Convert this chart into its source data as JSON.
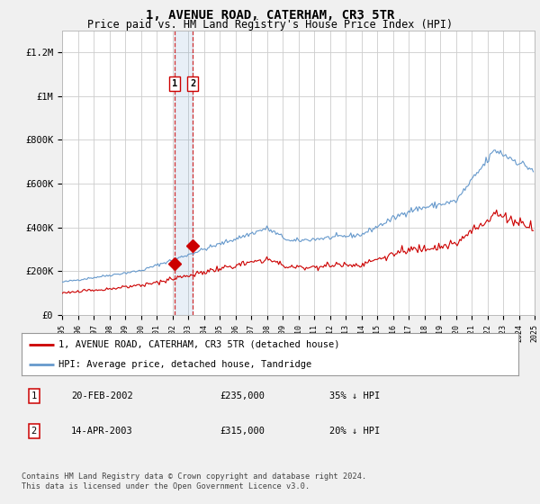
{
  "title": "1, AVENUE ROAD, CATERHAM, CR3 5TR",
  "subtitle": "Price paid vs. HM Land Registry's House Price Index (HPI)",
  "legend_line1": "1, AVENUE ROAD, CATERHAM, CR3 5TR (detached house)",
  "legend_line2": "HPI: Average price, detached house, Tandridge",
  "footer": "Contains HM Land Registry data © Crown copyright and database right 2024.\nThis data is licensed under the Open Government Licence v3.0.",
  "transactions": [
    {
      "num": 1,
      "date": "20-FEB-2002",
      "price": "£235,000",
      "hpi": "35% ↓ HPI",
      "year": 2002.13
    },
    {
      "num": 2,
      "date": "14-APR-2003",
      "price": "£315,000",
      "hpi": "20% ↓ HPI",
      "year": 2003.29
    }
  ],
  "hpi_color": "#6699cc",
  "price_paid_color": "#cc0000",
  "xlim": [
    1995,
    2025
  ],
  "ylim": [
    0,
    1300000
  ],
  "yticks": [
    0,
    200000,
    400000,
    600000,
    800000,
    1000000,
    1200000
  ],
  "ytick_labels": [
    "£0",
    "£200K",
    "£400K",
    "£600K",
    "£800K",
    "£1M",
    "£1.2M"
  ],
  "background_color": "#f0f0f0",
  "plot_bg_color": "#ffffff",
  "grid_color": "#cccccc",
  "title_fontsize": 10,
  "subtitle_fontsize": 8.5
}
